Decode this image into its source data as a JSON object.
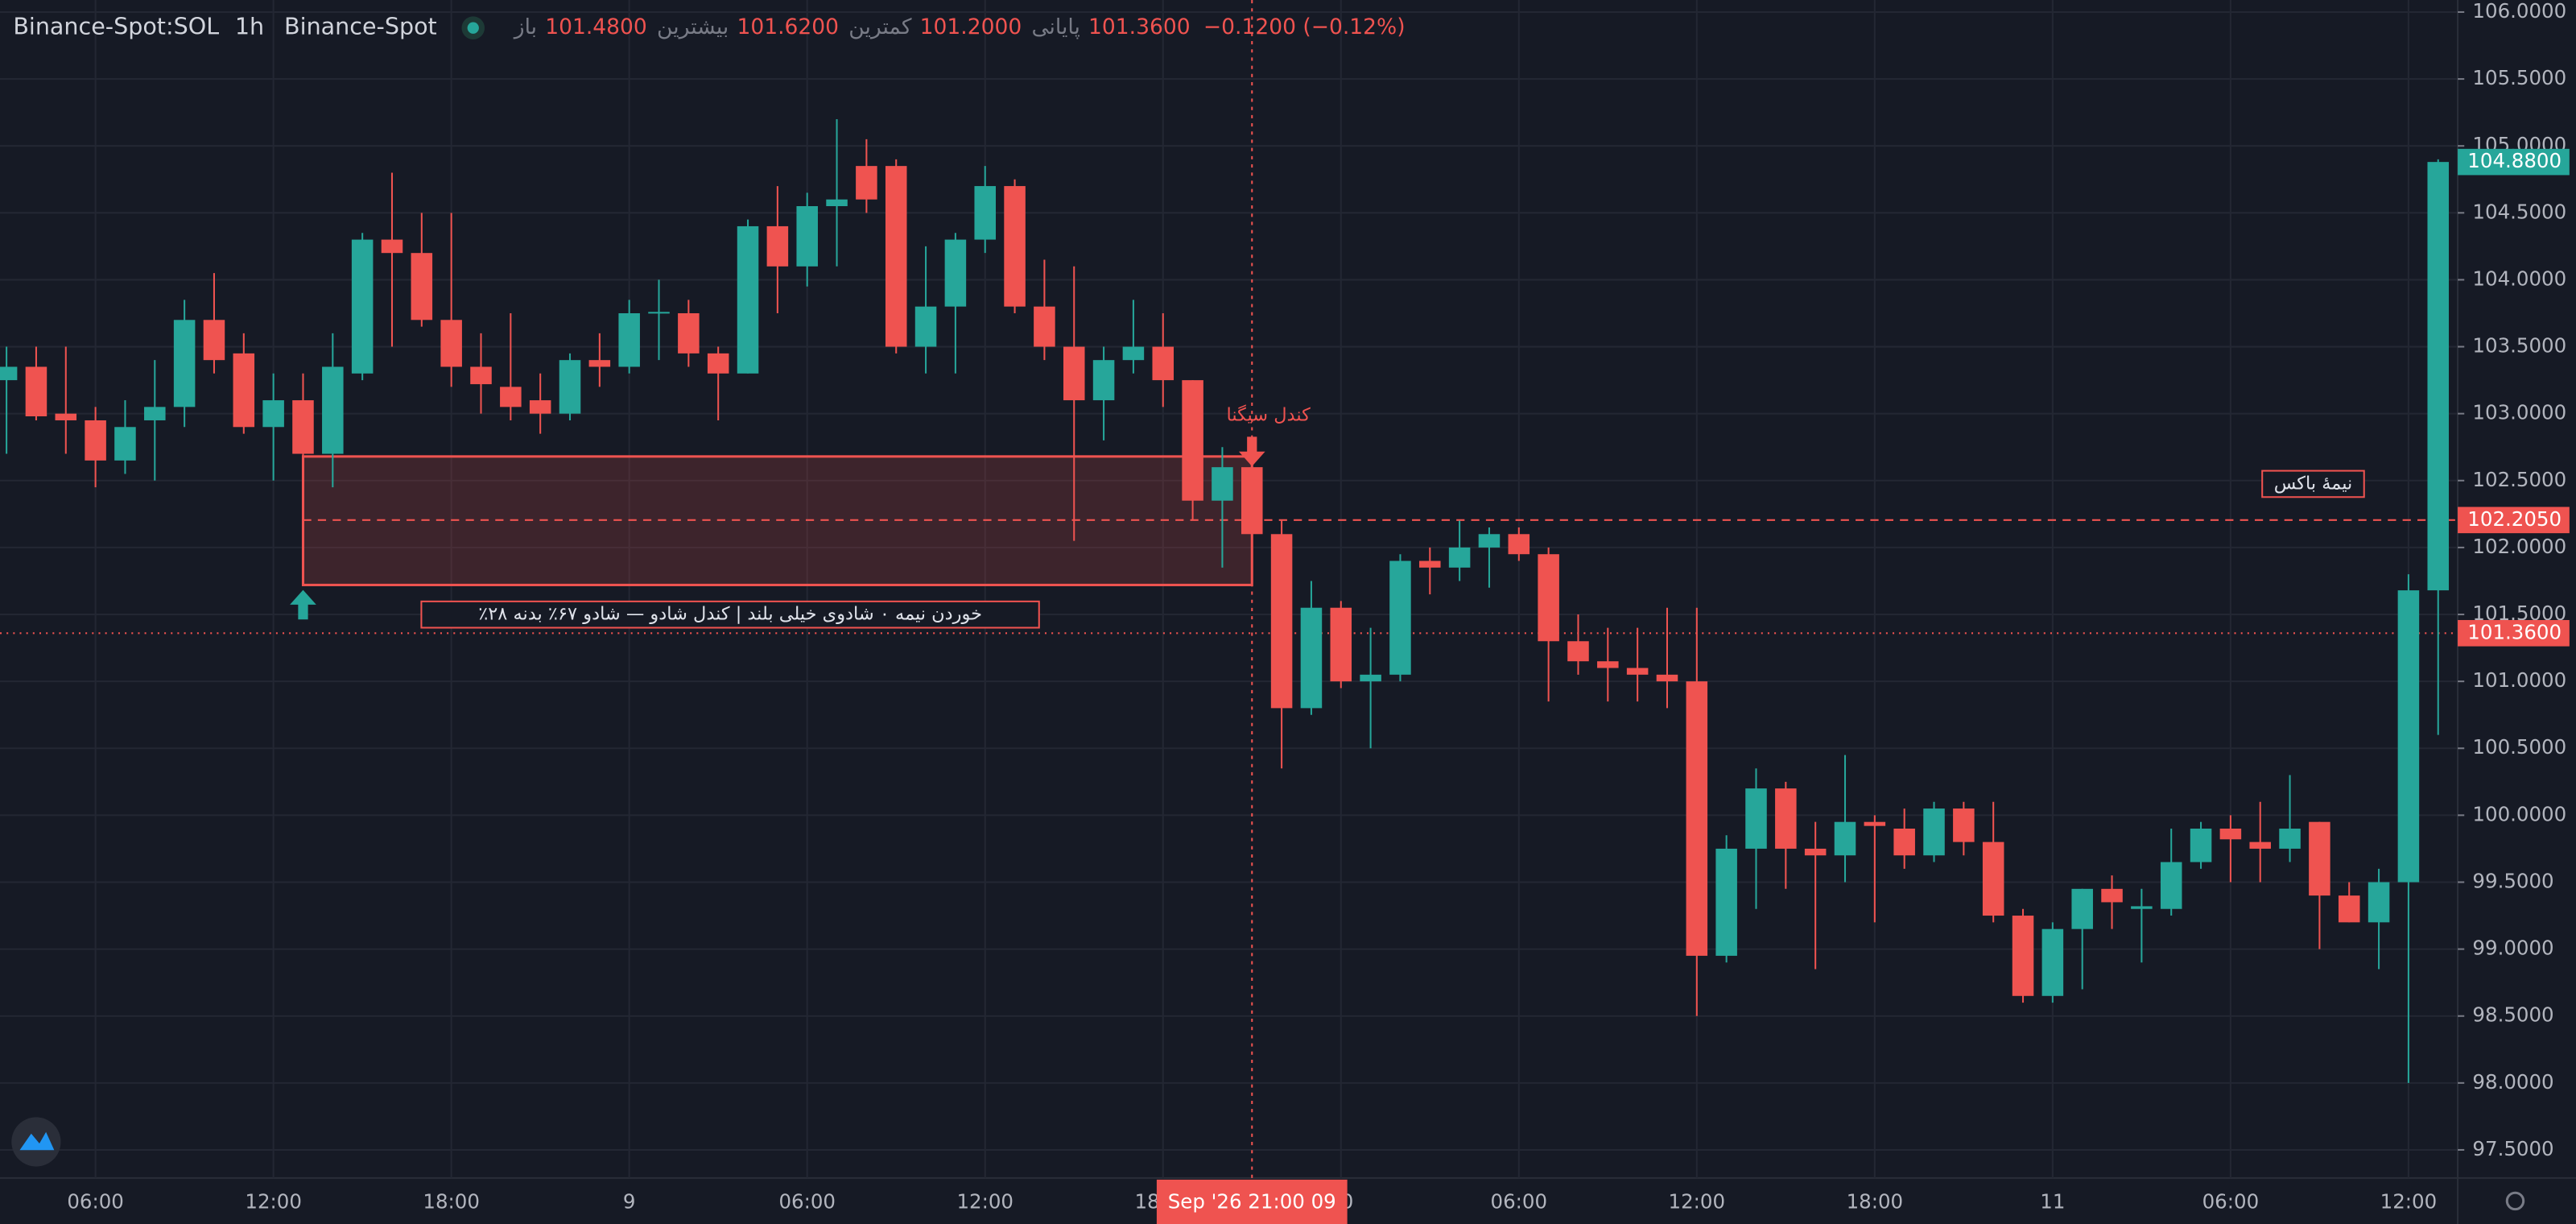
{
  "chart_data": {
    "type": "candlestick",
    "title": "Binance-Spot:SOL",
    "interval": "1h",
    "exchange": "Binance-Spot",
    "legend": [
      {
        "name": "باز",
        "value": {
          "value": 101.48,
          "label": "101.4800"
        }
      },
      {
        "name": "بیشترین",
        "value": {
          "value": 101.62,
          "label": "101.6200"
        }
      },
      {
        "name": "کمترین",
        "value": {
          "value": 101.2,
          "label": "101.2000"
        }
      },
      {
        "name": "پایانی",
        "value": {
          "value": 101.36,
          "label": "101.3600"
        }
      }
    ],
    "change": "−0.1200 (−0.12%)",
    "colors": {
      "up": "#26a69a",
      "down": "#ef5350"
    },
    "open": [
      103.25,
      103.35,
      103.0,
      102.95,
      102.65,
      102.95,
      103.05,
      103.7,
      103.45,
      102.9,
      103.1,
      102.7,
      103.3,
      104.3,
      104.2,
      103.7,
      103.35,
      103.2,
      103.1,
      103.0,
      103.4,
      103.35,
      103.75,
      103.75,
      103.45,
      103.3,
      104.4,
      104.1,
      104.55,
      104.85,
      104.85,
      103.5,
      103.8,
      104.3,
      104.7,
      103.8,
      103.5,
      103.1,
      103.4,
      103.5,
      103.25,
      102.35,
      102.6,
      102.1,
      100.8,
      101.55,
      101.0,
      101.05,
      101.9,
      101.85,
      102.0,
      102.1,
      101.95,
      101.3,
      101.15,
      101.1,
      101.05,
      101.0,
      98.95,
      99.75,
      100.2,
      99.75,
      99.7,
      99.95,
      99.9,
      99.7,
      100.05,
      99.8,
      99.25,
      98.65,
      99.15,
      99.45,
      99.3,
      99.3,
      99.65,
      99.9,
      99.8,
      99.75,
      99.95,
      99.4,
      99.2,
      99.5,
      101.68
    ],
    "high": [
      103.5,
      103.5,
      103.5,
      103.05,
      103.1,
      103.4,
      103.85,
      104.05,
      103.6,
      103.3,
      103.3,
      103.6,
      104.35,
      104.8,
      104.5,
      104.5,
      103.6,
      103.75,
      103.3,
      103.45,
      103.6,
      103.85,
      104.0,
      103.85,
      103.5,
      104.45,
      104.7,
      104.65,
      105.2,
      105.05,
      104.9,
      104.25,
      104.35,
      104.85,
      104.75,
      104.15,
      104.1,
      103.5,
      103.85,
      103.75,
      103.25,
      102.75,
      102.6,
      102.2,
      101.75,
      101.6,
      101.4,
      101.95,
      102.0,
      102.2,
      102.15,
      102.15,
      102.0,
      101.5,
      101.4,
      101.4,
      101.55,
      101.55,
      99.85,
      100.35,
      100.25,
      99.95,
      100.45,
      100.0,
      100.05,
      100.1,
      100.1,
      100.1,
      99.3,
      99.2,
      99.45,
      99.55,
      99.45,
      99.9,
      99.95,
      100.0,
      100.1,
      100.3,
      99.95,
      99.5,
      99.6,
      101.8,
      104.9
    ],
    "low": [
      102.7,
      102.95,
      102.7,
      102.45,
      102.55,
      102.5,
      102.9,
      103.3,
      102.85,
      102.5,
      102.65,
      102.45,
      103.25,
      103.5,
      103.65,
      103.2,
      103.0,
      102.95,
      102.85,
      102.95,
      103.2,
      103.3,
      103.4,
      103.35,
      102.95,
      103.3,
      103.75,
      103.95,
      104.1,
      104.5,
      103.45,
      103.3,
      103.3,
      104.2,
      103.75,
      103.4,
      102.05,
      102.8,
      103.3,
      103.05,
      102.2,
      101.85,
      102.05,
      100.35,
      100.75,
      100.95,
      100.5,
      101.0,
      101.65,
      101.75,
      101.7,
      101.9,
      100.85,
      101.05,
      100.85,
      100.85,
      100.8,
      98.5,
      98.9,
      99.3,
      99.45,
      98.85,
      99.5,
      99.2,
      99.6,
      99.65,
      99.7,
      99.2,
      98.6,
      98.6,
      98.7,
      99.15,
      98.9,
      99.25,
      99.6,
      99.5,
      99.5,
      99.65,
      99.0,
      99.2,
      98.85,
      98.0,
      100.6
    ],
    "close": [
      103.35,
      102.98,
      102.95,
      102.65,
      102.9,
      103.05,
      103.7,
      103.4,
      102.9,
      103.1,
      102.7,
      103.35,
      104.3,
      104.2,
      103.7,
      103.35,
      103.22,
      103.05,
      103.0,
      103.4,
      103.35,
      103.75,
      103.76,
      103.45,
      103.3,
      104.4,
      104.1,
      104.55,
      104.6,
      104.6,
      103.5,
      103.8,
      104.3,
      104.7,
      103.8,
      103.5,
      103.1,
      103.4,
      103.5,
      103.25,
      102.35,
      102.6,
      102.1,
      100.8,
      101.55,
      101.0,
      101.05,
      101.9,
      101.85,
      102.0,
      102.1,
      101.95,
      101.3,
      101.15,
      101.1,
      101.05,
      101.0,
      98.95,
      99.75,
      100.2,
      99.75,
      99.7,
      99.95,
      99.92,
      99.7,
      100.05,
      99.8,
      99.25,
      98.65,
      99.15,
      99.45,
      99.35,
      99.32,
      99.65,
      99.9,
      99.82,
      99.75,
      99.9,
      99.4,
      99.2,
      99.5,
      101.68,
      104.88
    ],
    "xlim": [
      -0.22,
      82.66
    ],
    "ylim": [
      97.29,
      106.09
    ],
    "grid": true,
    "xticks": [
      {
        "value": 3,
        "label": "06:00"
      },
      {
        "value": 9,
        "label": "12:00"
      },
      {
        "value": 15,
        "label": "18:00"
      },
      {
        "value": 21,
        "label": "9"
      },
      {
        "value": 27,
        "label": "06:00"
      },
      {
        "value": 33,
        "label": "12:00"
      },
      {
        "value": 39,
        "label": "18:00"
      },
      {
        "value": 45,
        "label": "10"
      },
      {
        "value": 51,
        "label": "06:00"
      },
      {
        "value": 57,
        "label": "12:00"
      },
      {
        "value": 63,
        "label": "18:00"
      },
      {
        "value": 69,
        "label": "11"
      },
      {
        "value": 75,
        "label": "06:00"
      },
      {
        "value": 81,
        "label": "12:00"
      }
    ],
    "yticks": [
      {
        "value": 97.5,
        "label": "97.5000"
      },
      {
        "value": 98,
        "label": "98.0000"
      },
      {
        "value": 98.5,
        "label": "98.5000"
      },
      {
        "value": 99,
        "label": "99.0000"
      },
      {
        "value": 99.5,
        "label": "99.5000"
      },
      {
        "value": 100,
        "label": "100.0000"
      },
      {
        "value": 100.5,
        "label": "100.5000"
      },
      {
        "value": 101,
        "label": "101.0000"
      },
      {
        "value": 101.5,
        "label": "101.5000"
      },
      {
        "value": 102,
        "label": "102.0000"
      },
      {
        "value": 102.5,
        "label": "102.5000"
      },
      {
        "value": 103,
        "label": "103.0000"
      },
      {
        "value": 103.5,
        "label": "103.5000"
      },
      {
        "value": 104,
        "label": "104.0000"
      },
      {
        "value": 104.5,
        "label": "104.5000"
      },
      {
        "value": 105,
        "label": "105.0000"
      },
      {
        "value": 105.5,
        "label": "105.5000"
      },
      {
        "value": 106,
        "label": "106.0000"
      }
    ],
    "price_tags": [
      {
        "value": 104.88,
        "label": "104.8800",
        "color": "#26a69a",
        "line": "none"
      },
      {
        "value": 102.205,
        "label": "102.2050",
        "color": "#ef5350",
        "line": "dashed"
      },
      {
        "value": 101.36,
        "label": "101.3600",
        "color": "#ef5350",
        "line": "dotted"
      }
    ],
    "box": {
      "start": 10,
      "end": 42,
      "top": 102.68,
      "bottom": 101.72,
      "text": "٪خوردن نیمه ۰ شادوی خیلی بلند | کندل شادو — شادو ۶۷٪ بدنه ۲۸",
      "mid_label": "نیمهٔ باکس"
    },
    "markers": [
      {
        "kind": "up",
        "index": 10
      },
      {
        "kind": "down",
        "index": 42,
        "text": "کندل سیگنا"
      }
    ],
    "crosshair": {
      "index": 42,
      "label": "Sep '26  21:00 09"
    }
  }
}
